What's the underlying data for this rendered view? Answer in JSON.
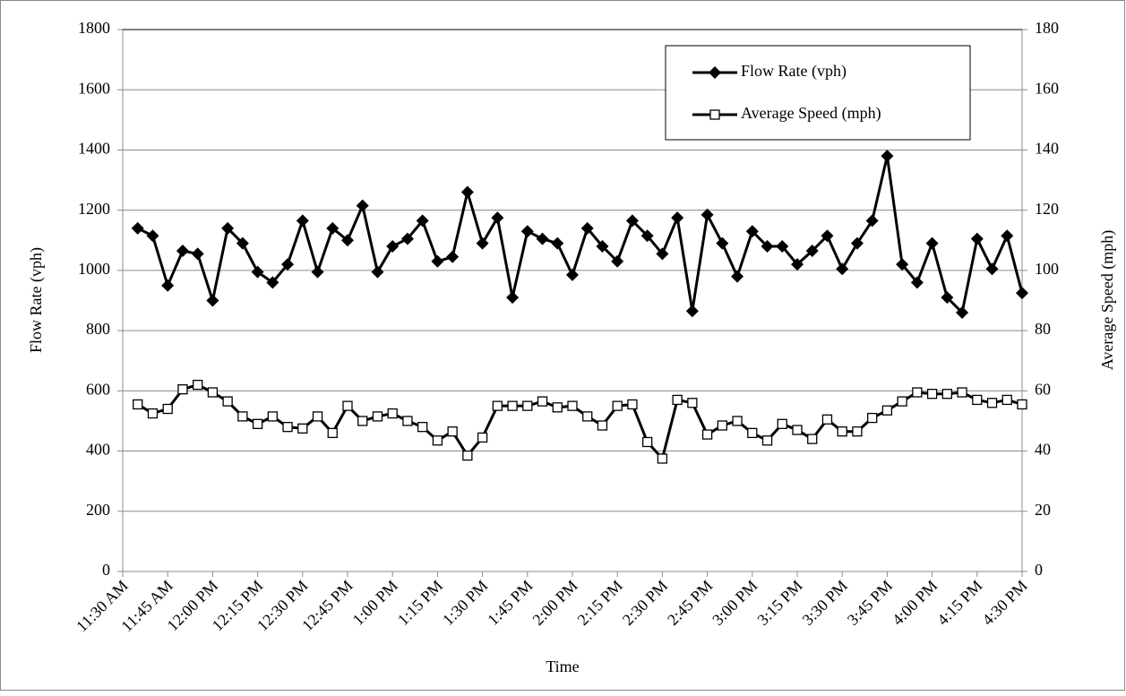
{
  "chart_data": {
    "type": "line",
    "x_label": "Time",
    "y_label": "Flow Rate (vph)",
    "y2_label": "Average Speed (mph)",
    "categories": [
      "11:30 AM",
      null,
      null,
      "11:45 AM",
      null,
      null,
      "12:00 PM",
      null,
      null,
      "12:15 PM",
      null,
      null,
      "12:30 PM",
      null,
      null,
      "12:45 PM",
      null,
      null,
      "1:00 PM",
      null,
      null,
      "1:15 PM",
      null,
      null,
      "1:30 PM",
      null,
      null,
      "1:45 PM",
      null,
      null,
      "2:00 PM",
      null,
      null,
      "2:15 PM",
      null,
      null,
      "2:30 PM",
      null,
      null,
      "2:45 PM",
      null,
      null,
      "3:00 PM",
      null,
      null,
      "3:15 PM",
      null,
      null,
      "3:30 PM",
      null,
      null,
      "3:45 PM",
      null,
      null,
      "4:00 PM",
      null,
      null,
      "4:15 PM",
      null,
      null,
      "4:30 PM"
    ],
    "series": [
      {
        "name": "Flow Rate (vph)",
        "color": "#000000",
        "marker": "diamond",
        "values": [
          null,
          1140,
          1115,
          950,
          1065,
          1055,
          900,
          1140,
          1090,
          995,
          960,
          1020,
          1165,
          995,
          1140,
          1100,
          1215,
          995,
          1080,
          1105,
          1165,
          1030,
          1045,
          1260,
          1090,
          1175,
          910,
          1130,
          1105,
          1090,
          985,
          1140,
          1080,
          1030,
          1165,
          1115,
          1055,
          1175,
          865,
          1185,
          1090,
          980,
          1130,
          1080,
          1080,
          1020,
          1065,
          1115,
          1005,
          1090,
          1165,
          1380,
          1020,
          960,
          1090,
          910,
          860,
          1105,
          1005,
          1115,
          925
        ]
      },
      {
        "name": "Average Speed (mph)",
        "color": "#000000",
        "marker": "square",
        "axis": "y2",
        "values": [
          null,
          55.5,
          52.5,
          54,
          60.5,
          62,
          59.5,
          56.5,
          51.5,
          49,
          51.5,
          48,
          47.5,
          51.5,
          46,
          55,
          50,
          51.5,
          52.5,
          50,
          48,
          43.5,
          46.5,
          38.5,
          44.5,
          55,
          55,
          55,
          56.5,
          54.5,
          55,
          51.5,
          48.5,
          55,
          55.5,
          43,
          37.5,
          57,
          56,
          45.5,
          48.5,
          50,
          46,
          43.5,
          49,
          47,
          44,
          50.5,
          46.5,
          46.5,
          51,
          53.5,
          56.5,
          59.5,
          59,
          59,
          59.5,
          57,
          56,
          57,
          55.5
        ]
      }
    ],
    "ylim": [
      0,
      1800
    ],
    "yticks": [
      0,
      200,
      400,
      600,
      800,
      1000,
      1200,
      1400,
      1600,
      1800
    ],
    "y2lim": [
      0,
      180
    ],
    "y2ticks": [
      0,
      20,
      40,
      60,
      80,
      100,
      120,
      140,
      160,
      180
    ],
    "grid": true,
    "legend": "top-right"
  }
}
